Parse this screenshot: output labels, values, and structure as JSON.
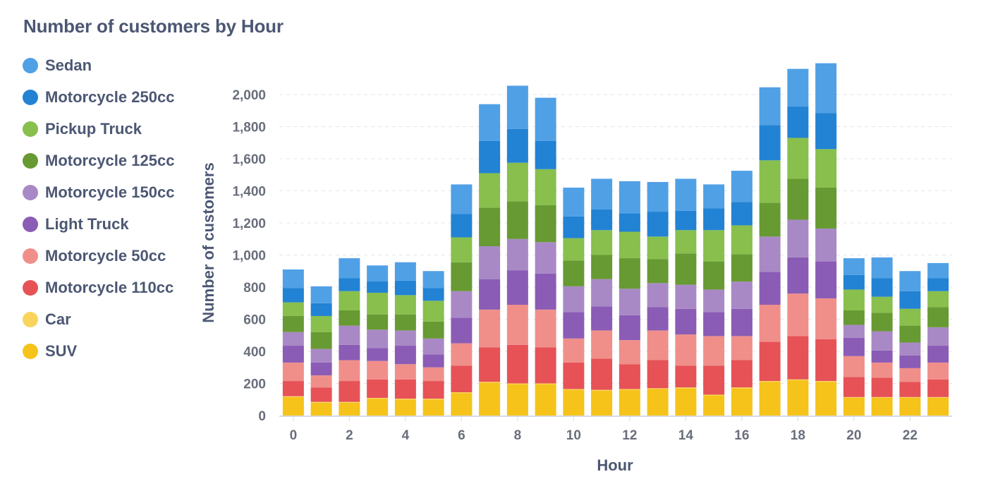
{
  "chart_data": {
    "type": "bar",
    "stacked": true,
    "title": "Number of customers by Hour",
    "xlabel": "Hour",
    "ylabel": "Number of customers",
    "ylim": [
      0,
      2150
    ],
    "yticks": [
      0,
      200,
      400,
      600,
      800,
      1000,
      1200,
      1400,
      1600,
      1800,
      2000
    ],
    "ytick_labels": [
      "0",
      "200",
      "400",
      "600",
      "800",
      "1,000",
      "1,200",
      "1,400",
      "1,600",
      "1,800",
      "2,000"
    ],
    "xtick_labels": [
      "0",
      "2",
      "4",
      "6",
      "8",
      "10",
      "12",
      "14",
      "16",
      "18",
      "20",
      "22"
    ],
    "xticks": [
      0,
      2,
      4,
      6,
      8,
      10,
      12,
      14,
      16,
      18,
      20,
      22
    ],
    "grid": "horizontal-dashed",
    "legend_position": "left",
    "categories": [
      0,
      1,
      2,
      3,
      4,
      5,
      6,
      7,
      8,
      9,
      10,
      11,
      12,
      13,
      14,
      15,
      16,
      17,
      18,
      19,
      20,
      21,
      22,
      23
    ],
    "series": [
      {
        "name": "SUV",
        "color": "#f5c31a",
        "values": [
          115,
          80,
          80,
          105,
          100,
          100,
          140,
          205,
          195,
          195,
          160,
          155,
          160,
          165,
          170,
          125,
          170,
          210,
          220,
          210,
          110,
          110,
          110,
          110
        ]
      },
      {
        "name": "Car",
        "color": "#f9d45c",
        "values": [
          5,
          5,
          5,
          5,
          5,
          5,
          5,
          5,
          5,
          5,
          5,
          5,
          5,
          5,
          5,
          5,
          5,
          5,
          5,
          5,
          5,
          5,
          5,
          5
        ]
      },
      {
        "name": "Motorcycle 110cc",
        "color": "#e65256",
        "values": [
          95,
          90,
          130,
          115,
          120,
          110,
          165,
          215,
          240,
          225,
          165,
          195,
          155,
          175,
          135,
          180,
          170,
          245,
          270,
          260,
          125,
          120,
          95,
          110
        ]
      },
      {
        "name": "Motorcycle 50cc",
        "color": "#f08f8a",
        "values": [
          115,
          75,
          130,
          115,
          95,
          85,
          140,
          235,
          250,
          235,
          150,
          175,
          150,
          185,
          195,
          185,
          150,
          230,
          265,
          255,
          130,
          95,
          85,
          105
        ]
      },
      {
        "name": "Light Truck",
        "color": "#8a5cb5",
        "values": [
          105,
          80,
          95,
          80,
          115,
          80,
          160,
          190,
          215,
          225,
          165,
          150,
          155,
          145,
          160,
          150,
          170,
          205,
          225,
          230,
          115,
          75,
          80,
          105
        ]
      },
      {
        "name": "Motorcycle 150cc",
        "color": "#a989c5",
        "values": [
          85,
          85,
          120,
          115,
          95,
          100,
          165,
          205,
          195,
          195,
          160,
          170,
          165,
          150,
          150,
          140,
          170,
          220,
          235,
          205,
          80,
          120,
          80,
          115
        ]
      },
      {
        "name": "Motorcycle 125cc",
        "color": "#679a32",
        "values": [
          100,
          105,
          95,
          95,
          100,
          105,
          180,
          240,
          235,
          230,
          160,
          150,
          190,
          150,
          195,
          175,
          170,
          210,
          255,
          255,
          90,
          115,
          105,
          125
        ]
      },
      {
        "name": "Pickup Truck",
        "color": "#88bf4d",
        "values": [
          85,
          100,
          120,
          135,
          120,
          130,
          155,
          215,
          240,
          225,
          140,
          155,
          165,
          140,
          145,
          195,
          180,
          265,
          255,
          240,
          130,
          100,
          105,
          100
        ]
      },
      {
        "name": "Motorcycle 250cc",
        "color": "#2282d3",
        "values": [
          90,
          80,
          80,
          70,
          90,
          80,
          145,
          200,
          210,
          175,
          135,
          130,
          115,
          155,
          120,
          135,
          145,
          220,
          195,
          225,
          90,
          115,
          110,
          80
        ]
      },
      {
        "name": "Sedan",
        "color": "#50a0e6",
        "values": [
          115,
          105,
          125,
          100,
          115,
          105,
          185,
          230,
          270,
          270,
          180,
          190,
          200,
          185,
          200,
          150,
          195,
          235,
          235,
          310,
          105,
          130,
          125,
          95
        ]
      }
    ]
  }
}
